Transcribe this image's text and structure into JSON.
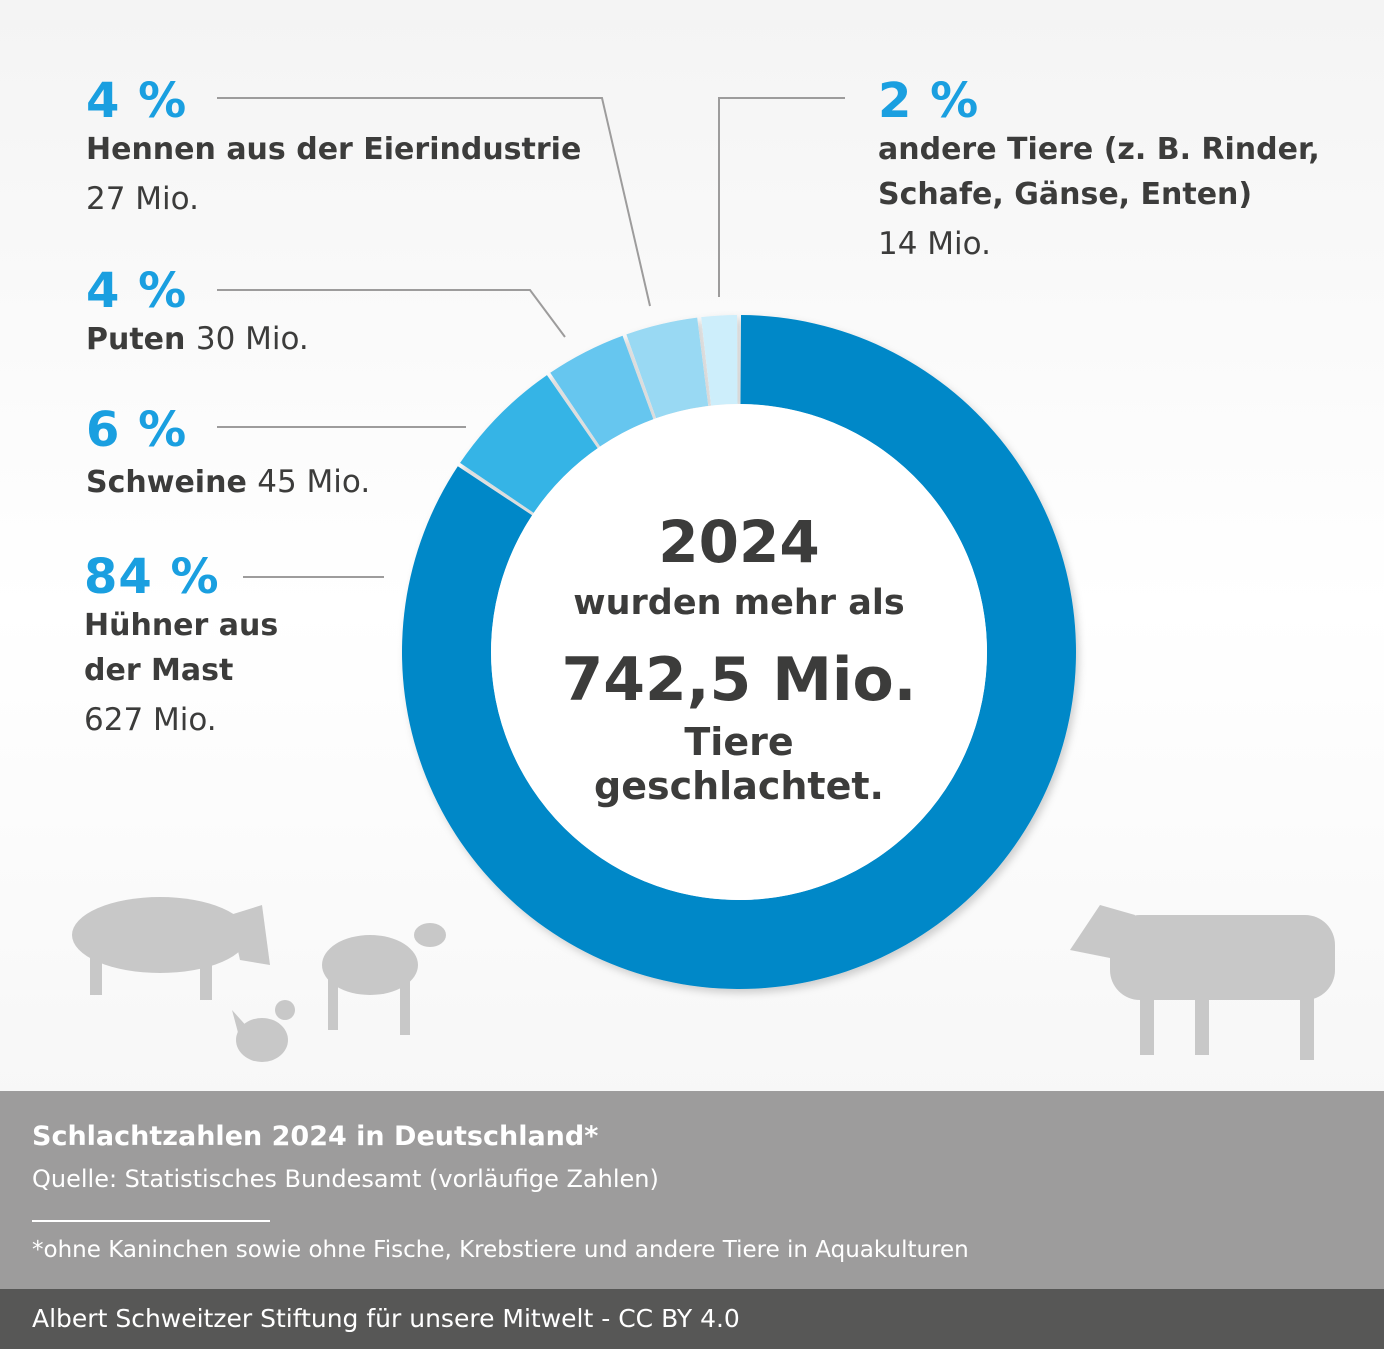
{
  "chart_data": {
    "type": "pie",
    "variant": "donut",
    "categories": [
      "Hühner aus der Mast",
      "Schweine",
      "Puten",
      "Hennen aus der Eierindustrie",
      "andere Tiere (z. B. Rinder, Schafe, Gänse, Enten)"
    ],
    "values_mio": [
      627,
      45,
      30,
      27,
      14
    ],
    "percent_labels": [
      "84 %",
      "6 %",
      "4 %",
      "4 %",
      "2 %"
    ],
    "value_labels": [
      "627 Mio.",
      "45 Mio.",
      "30 Mio.",
      "27 Mio.",
      "14 Mio."
    ],
    "colors": [
      "#0088c8",
      "#35b4e6",
      "#66c6ef",
      "#99d9f3",
      "#cdeefb"
    ],
    "direction": "clockwise from top"
  },
  "labels": {
    "hennen": {
      "pct": "4 %",
      "name": "Hennen aus der Eierindustrie",
      "val": "27 Mio."
    },
    "puten": {
      "pct": "4 %",
      "name": "Puten",
      "val": "30 Mio."
    },
    "schweine": {
      "pct": "6 %",
      "name": "Schweine",
      "val": "45 Mio."
    },
    "huehner": {
      "pct": "84 %",
      "name1": "Hühner aus",
      "name2": "der Mast",
      "val": "627 Mio."
    },
    "andere": {
      "pct": "2 %",
      "name1": "andere Tiere (z. B. Rinder,",
      "name2": "Schafe, Gänse, Enten)",
      "val": "14 Mio."
    }
  },
  "center": {
    "year": "2024",
    "line1": "wurden mehr als",
    "total": "742,5 Mio.",
    "line2": "Tiere geschlachtet."
  },
  "footer": {
    "title": "Schlachtzahlen 2024 in Deutschland*",
    "source": "Quelle: Statistisches Bundesamt (vorläufige Zahlen)",
    "note": "*ohne Kaninchen sowie ohne Fische, Krebstiere und andere Tiere in Aquakulturen",
    "credit": "Albert Schweitzer Stiftung für unsere Mitwelt - CC BY 4.0"
  }
}
